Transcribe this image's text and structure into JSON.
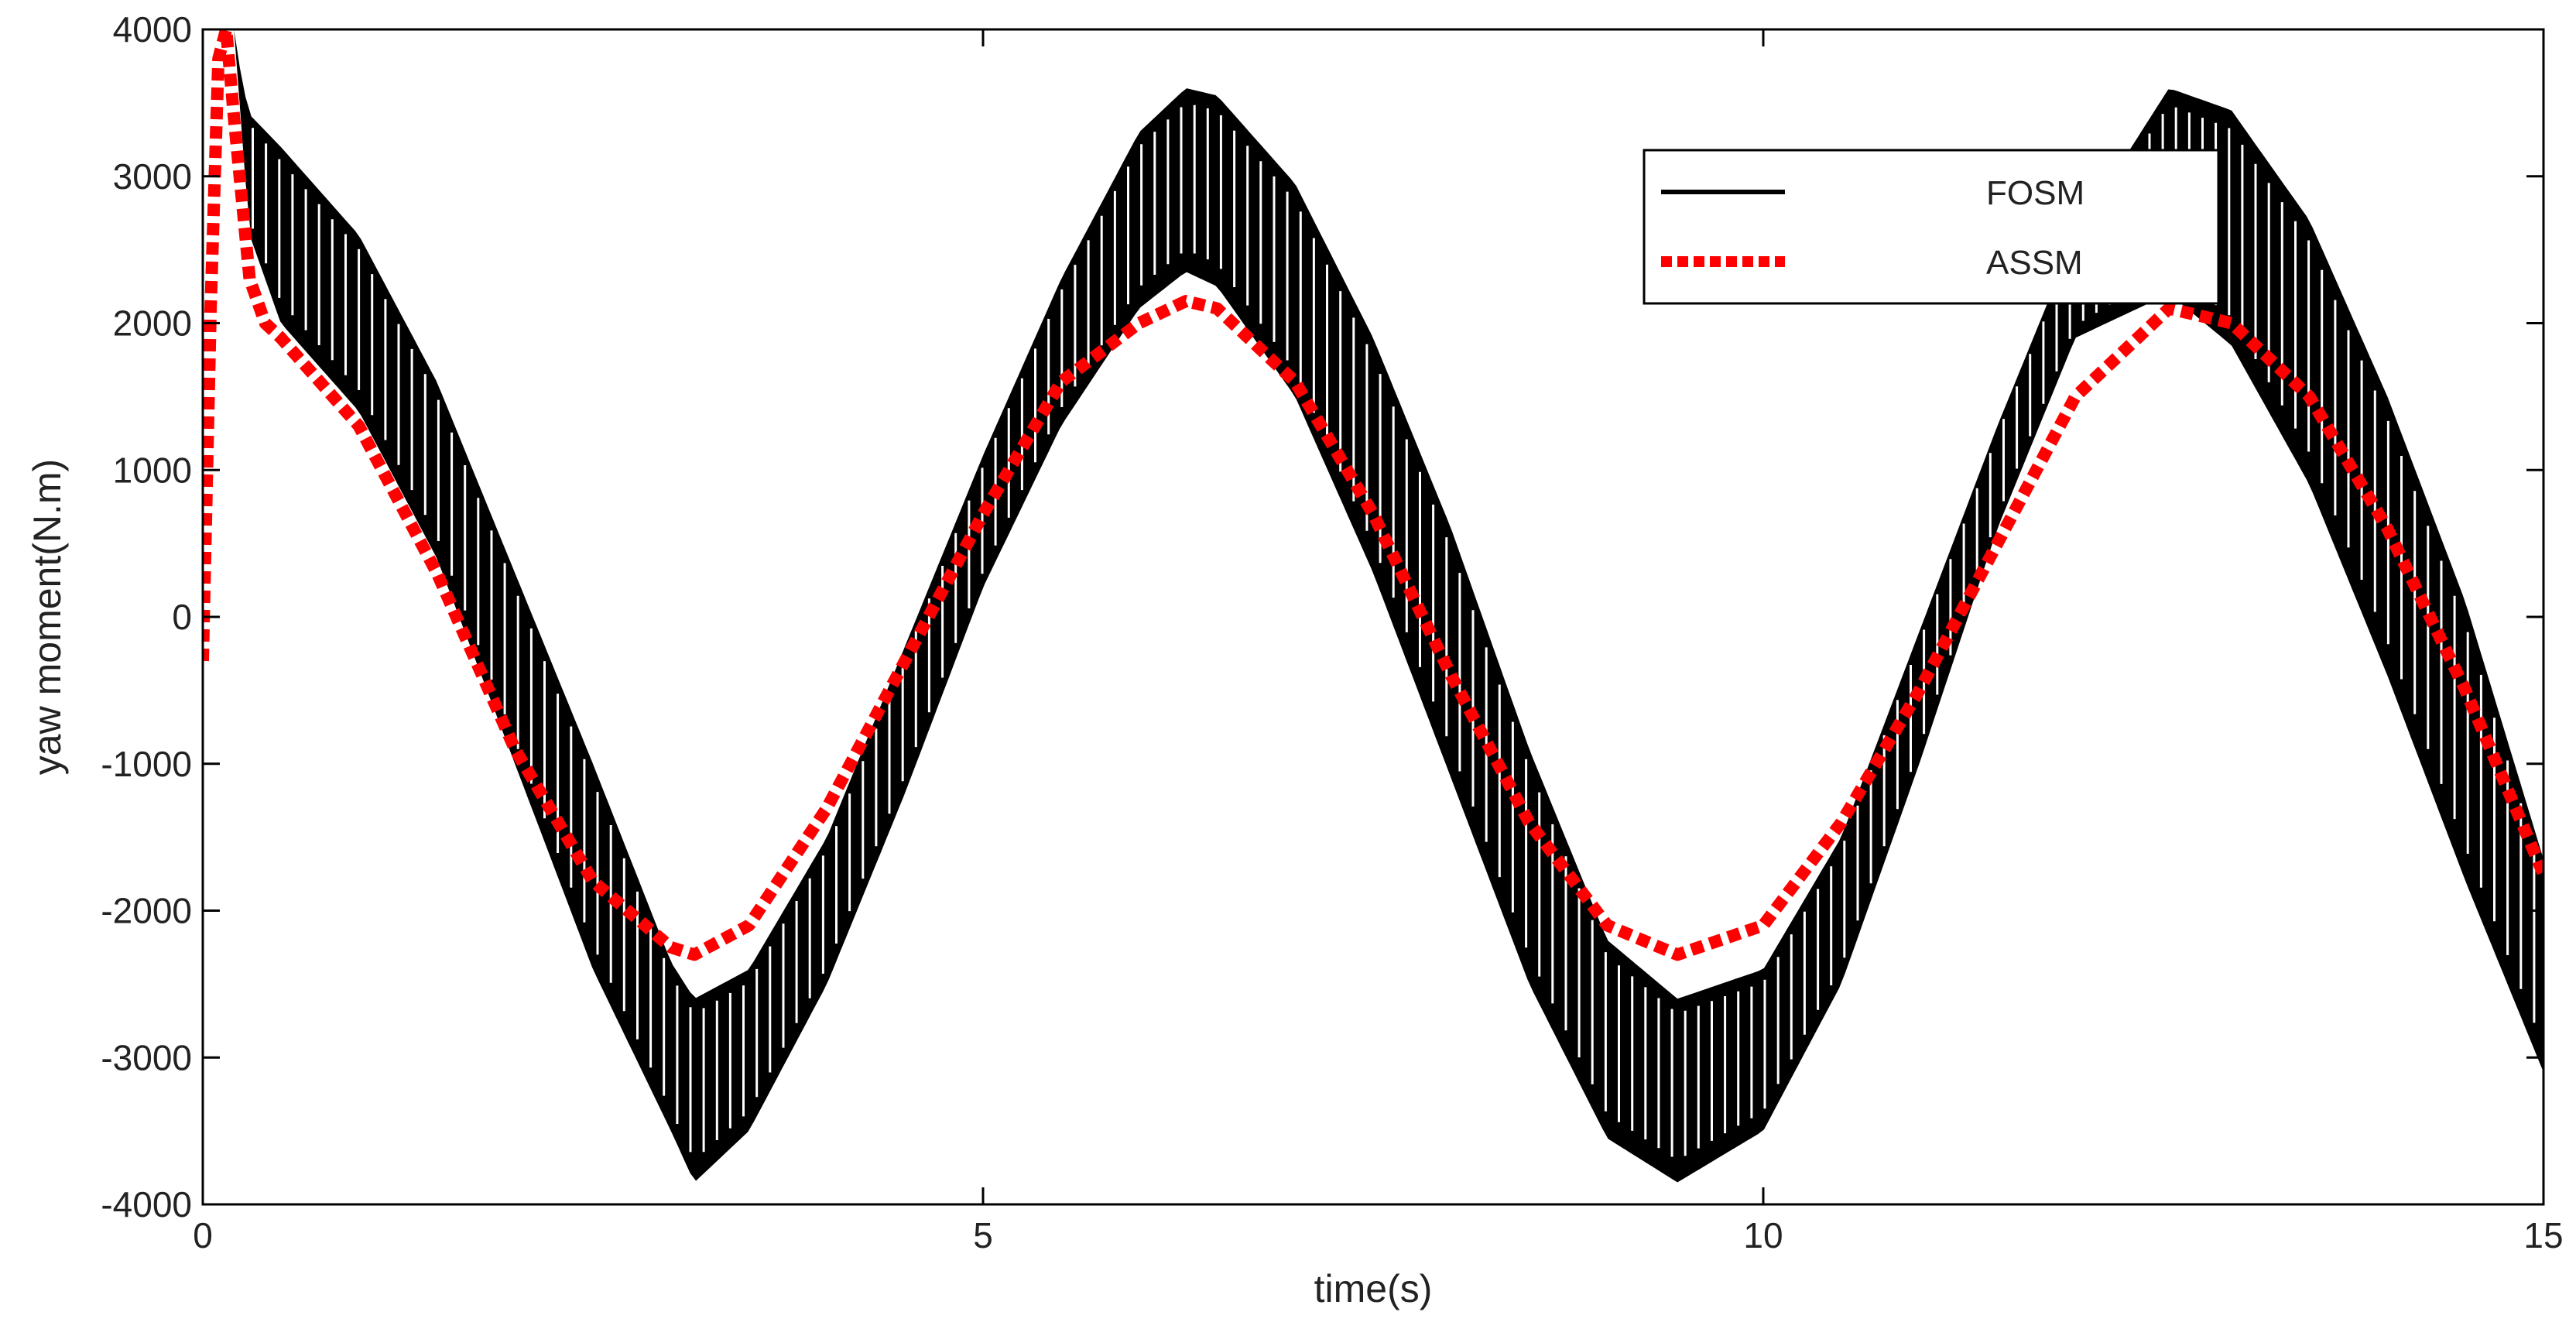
{
  "chart_data": {
    "type": "line",
    "title": "",
    "xlabel": "time(s)",
    "ylabel": "yaw moment(N.m)",
    "xlim": [
      0,
      15
    ],
    "ylim": [
      -4000,
      4000
    ],
    "xticks": [
      0,
      5,
      10,
      15
    ],
    "yticks": [
      -4000,
      -3000,
      -2000,
      -1000,
      0,
      1000,
      2000,
      3000,
      4000
    ],
    "grid": false,
    "legend_position": "top-right",
    "series": [
      {
        "name": "FOSM",
        "color": "#000000",
        "style": "solid",
        "description_values": "chattering band between lower and upper envelopes",
        "x": [
          0.2,
          0.25,
          0.3,
          0.5,
          1.0,
          1.5,
          2.0,
          2.5,
          3.0,
          3.15,
          3.5,
          4.0,
          4.5,
          5.0,
          5.5,
          6.0,
          6.3,
          6.5,
          7.0,
          7.5,
          8.0,
          8.5,
          9.0,
          9.45,
          10.0,
          10.5,
          11.0,
          11.5,
          12.0,
          12.6,
          13.0,
          13.5,
          14.0,
          14.5,
          15.0
        ],
        "upper": [
          4000,
          3650,
          3420,
          3200,
          2600,
          1600,
          300,
          -1000,
          -2350,
          -2600,
          -2400,
          -1500,
          -200,
          1100,
          2300,
          3300,
          3600,
          3550,
          2950,
          1900,
          600,
          -900,
          -2200,
          -2600,
          -2400,
          -1500,
          -100,
          1300,
          2600,
          3600,
          3450,
          2700,
          1500,
          100,
          -1650
        ],
        "lower": [
          4000,
          3300,
          2600,
          2000,
          1400,
          400,
          -1000,
          -2400,
          -3500,
          -3850,
          -3500,
          -2500,
          -1200,
          200,
          1300,
          2100,
          2350,
          2250,
          1500,
          300,
          -1100,
          -2500,
          -3550,
          -3850,
          -3500,
          -2500,
          -1000,
          600,
          1900,
          2200,
          1850,
          900,
          -400,
          -1800,
          -3100
        ]
      },
      {
        "name": "ASSM",
        "color": "#ff0000",
        "style": "dashed",
        "x": [
          0,
          0.05,
          0.1,
          0.15,
          0.2,
          0.3,
          0.4,
          0.5,
          1.0,
          1.5,
          2.0,
          2.5,
          3.0,
          3.15,
          3.5,
          4.0,
          4.5,
          5.0,
          5.5,
          6.0,
          6.3,
          6.5,
          7.0,
          7.5,
          8.0,
          8.5,
          9.0,
          9.45,
          10.0,
          10.5,
          11.0,
          11.5,
          12.0,
          12.6,
          13.0,
          13.5,
          14.0,
          14.5,
          15.0
        ],
        "y": [
          -300,
          2100,
          3800,
          4000,
          3400,
          2300,
          2000,
          1900,
          1300,
          300,
          -900,
          -1800,
          -2250,
          -2300,
          -2100,
          -1300,
          -300,
          700,
          1600,
          2000,
          2150,
          2100,
          1600,
          700,
          -400,
          -1400,
          -2100,
          -2300,
          -2100,
          -1400,
          -500,
          500,
          1500,
          2100,
          2000,
          1500,
          600,
          -500,
          -1750
        ]
      }
    ]
  }
}
